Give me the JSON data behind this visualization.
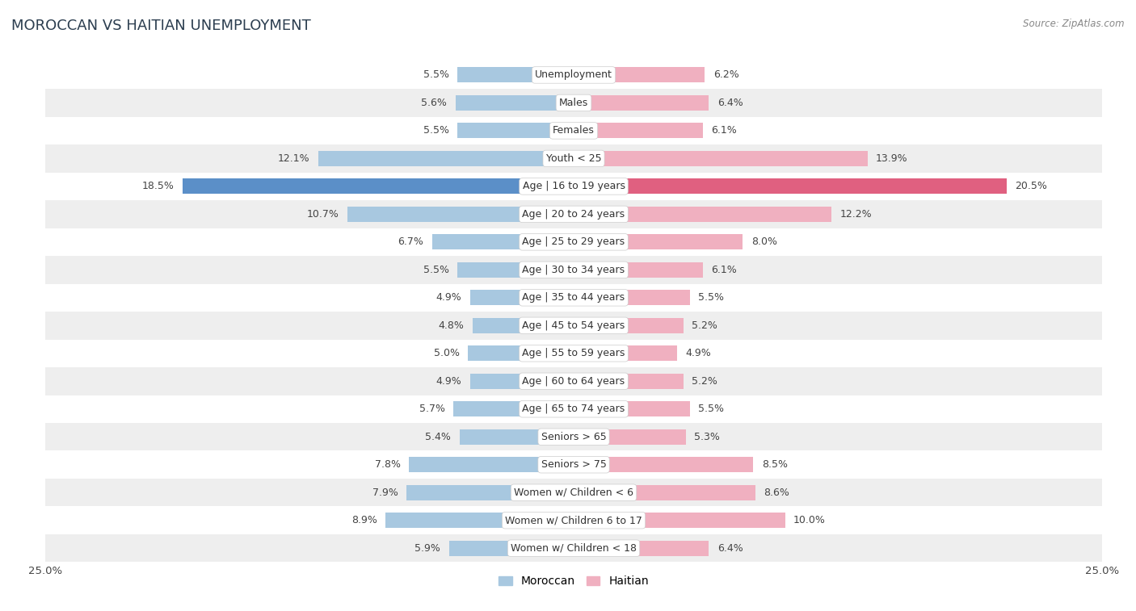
{
  "title": "MOROCCAN VS HAITIAN UNEMPLOYMENT",
  "source": "Source: ZipAtlas.com",
  "categories": [
    "Unemployment",
    "Males",
    "Females",
    "Youth < 25",
    "Age | 16 to 19 years",
    "Age | 20 to 24 years",
    "Age | 25 to 29 years",
    "Age | 30 to 34 years",
    "Age | 35 to 44 years",
    "Age | 45 to 54 years",
    "Age | 55 to 59 years",
    "Age | 60 to 64 years",
    "Age | 65 to 74 years",
    "Seniors > 65",
    "Seniors > 75",
    "Women w/ Children < 6",
    "Women w/ Children 6 to 17",
    "Women w/ Children < 18"
  ],
  "moroccan": [
    5.5,
    5.6,
    5.5,
    12.1,
    18.5,
    10.7,
    6.7,
    5.5,
    4.9,
    4.8,
    5.0,
    4.9,
    5.7,
    5.4,
    7.8,
    7.9,
    8.9,
    5.9
  ],
  "haitian": [
    6.2,
    6.4,
    6.1,
    13.9,
    20.5,
    12.2,
    8.0,
    6.1,
    5.5,
    5.2,
    4.9,
    5.2,
    5.5,
    5.3,
    8.5,
    8.6,
    10.0,
    6.4
  ],
  "moroccan_color": "#a8c8e0",
  "haitian_color": "#f0b0c0",
  "moroccan_highlight": "#5b8fc8",
  "haitian_highlight": "#e06080",
  "axis_limit": 25.0,
  "bar_height": 0.55,
  "background_color": "#ffffff",
  "row_alt_color": "#eeeeee",
  "label_fontsize": 9.0,
  "cat_fontsize": 9.0,
  "title_fontsize": 13,
  "source_fontsize": 8.5,
  "highlight_indices": [
    4
  ]
}
